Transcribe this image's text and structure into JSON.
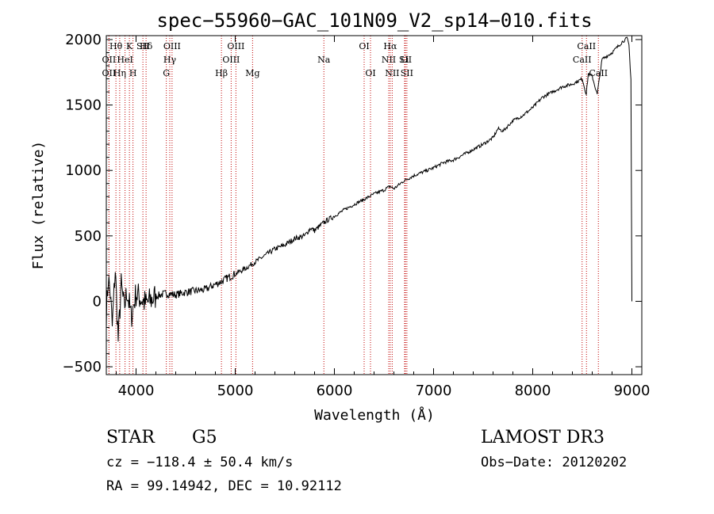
{
  "chart_data": {
    "type": "line",
    "title": "spec−55960−GAC_101N09_V2_sp14−010.fits",
    "xlabel": "Wavelength (Å)",
    "ylabel": "Flux (relative)",
    "xlim": [
      3700,
      9100
    ],
    "ylim": [
      -560,
      2030
    ],
    "x_ticks": [
      4000,
      5000,
      6000,
      7000,
      8000,
      9000
    ],
    "x_tick_labels": [
      "4000",
      "5000",
      "6000",
      "7000",
      "8000",
      "9000"
    ],
    "y_ticks": [
      -500,
      0,
      500,
      1000,
      1500,
      2000
    ],
    "y_tick_labels": [
      "−500",
      "0",
      "500",
      "1000",
      "1500",
      "2000"
    ],
    "series": [
      {
        "name": "flux",
        "x": [
          3700,
          3720,
          3740,
          3760,
          3790,
          3820,
          3850,
          3880,
          3910,
          3950,
          4000,
          4100,
          4200,
          4300,
          4400,
          4500,
          4600,
          4700,
          4800,
          4860,
          4900,
          5000,
          5100,
          5200,
          5300,
          5400,
          5500,
          5600,
          5700,
          5760,
          5800,
          5890,
          5950,
          6000,
          6100,
          6200,
          6300,
          6400,
          6500,
          6560,
          6600,
          6700,
          6800,
          6900,
          7000,
          7100,
          7200,
          7300,
          7400,
          7500,
          7600,
          7650,
          7700,
          7800,
          7900,
          8000,
          8100,
          8200,
          8300,
          8400,
          8500,
          8540,
          8560,
          8600,
          8650,
          8700,
          8800,
          8900,
          8950,
          8970,
          8990,
          9000
        ],
        "y": [
          -100,
          180,
          60,
          -200,
          250,
          -300,
          120,
          -50,
          80,
          -120,
          60,
          -20,
          40,
          60,
          50,
          70,
          80,
          90,
          130,
          150,
          170,
          210,
          250,
          300,
          350,
          400,
          430,
          480,
          500,
          560,
          540,
          600,
          630,
          650,
          700,
          740,
          780,
          820,
          850,
          880,
          860,
          920,
          960,
          990,
          1020,
          1060,
          1080,
          1120,
          1160,
          1200,
          1250,
          1320,
          1300,
          1380,
          1420,
          1480,
          1560,
          1600,
          1640,
          1660,
          1700,
          1580,
          1740,
          1720,
          1580,
          1850,
          1900,
          1980,
          2010,
          1960,
          1700,
          0
        ]
      }
    ],
    "lines": [
      {
        "label": "Hθ",
        "x": 3797
      },
      {
        "label": "K",
        "x": 3933
      },
      {
        "label": "Hδ",
        "x": 4101
      },
      {
        "label": "OII",
        "x": 3727
      },
      {
        "label": "HeI",
        "x": 3889
      },
      {
        "label": "SII",
        "x": 4069
      },
      {
        "label": "OII",
        "x": 3727
      },
      {
        "label": "Hη",
        "x": 3835
      },
      {
        "label": "H",
        "x": 3969
      },
      {
        "label": "OIII",
        "x": 4363
      },
      {
        "label": "Hγ",
        "x": 4340
      },
      {
        "label": "G",
        "x": 4305
      },
      {
        "label": "Hβ",
        "x": 4861
      },
      {
        "label": "OIII",
        "x": 5007
      },
      {
        "label": "OIII",
        "x": 4959
      },
      {
        "label": "Mg",
        "x": 5175
      },
      {
        "label": "Na",
        "x": 5894
      },
      {
        "label": "OI",
        "x": 6300
      },
      {
        "label": "OI",
        "x": 6364
      },
      {
        "label": "Hα",
        "x": 6563
      },
      {
        "label": "SII",
        "x": 6716
      },
      {
        "label": "NII",
        "x": 6548
      },
      {
        "label": "Li",
        "x": 6708
      },
      {
        "label": "NII",
        "x": 6583
      },
      {
        "label": "SII",
        "x": 6731
      },
      {
        "label": "CaII",
        "x": 8542
      },
      {
        "label": "CaII",
        "x": 8498
      },
      {
        "label": "CaII",
        "x": 8662
      }
    ],
    "line_label_rows": [
      [
        "Hθ",
        "K",
        "Hδ",
        "OIII",
        "OIII",
        "OI",
        "Hα",
        "SII",
        "CaII"
      ],
      [
        "OII",
        "HeI",
        "SII",
        "Hγ",
        "OIII",
        "Na",
        "NII",
        "Li",
        "CaII"
      ],
      [
        "OII",
        "Hη",
        "H",
        "G",
        "Hβ",
        "Mg",
        "OI",
        "NII",
        "SII",
        "CaII"
      ]
    ]
  },
  "info": {
    "object_class": "STAR",
    "subclass": "G5",
    "survey": "LAMOST DR3",
    "cz": "cz = −118.4 ± 50.4 km/s",
    "obs_date": "Obs−Date: 20120202",
    "coords": "RA =  99.14942, DEC =  10.92112"
  }
}
